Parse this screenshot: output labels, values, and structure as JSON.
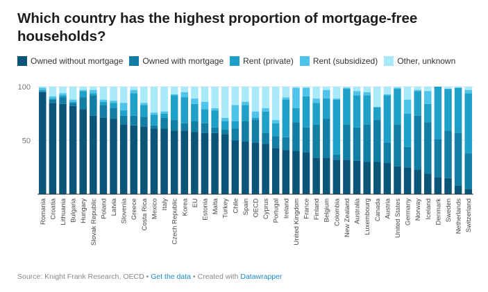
{
  "chart_data": {
    "type": "bar",
    "stacked": true,
    "title": "Which country has the highest proportion of mortgage-free households?",
    "ylim": [
      0,
      100
    ],
    "yticks": [
      50,
      100
    ],
    "grid": true,
    "legend_position": "top",
    "categories": [
      "Romania",
      "Croatia",
      "Lithuania",
      "Bulgaria",
      "Hungary",
      "Slovak Republic",
      "Poland",
      "Latvia",
      "Slovenia",
      "Greece",
      "Costa Rica",
      "Mexico",
      "Italy",
      "Czech Republic",
      "Korea",
      "EU",
      "Estonia",
      "Malta",
      "Turkey",
      "Chile",
      "Spain",
      "OECD",
      "Cyprus",
      "Portugal",
      "Ireland",
      "United Kingdom",
      "France",
      "Finland",
      "Belgium",
      "Colombia",
      "New Zealand",
      "Australia",
      "Luxembourg",
      "Canada",
      "Austria",
      "United States",
      "Germany",
      "Norway",
      "Iceland",
      "Denmark",
      "Sweden",
      "Netherlands",
      "Switzerland"
    ],
    "series": [
      {
        "name": "Owned without mortgage",
        "color": "#0b5578",
        "values": [
          95,
          85,
          84,
          82,
          79,
          73,
          71,
          70,
          65,
          64,
          63,
          61,
          61,
          59,
          59,
          58,
          57,
          57,
          56,
          50,
          49,
          48,
          47,
          43,
          41,
          40,
          39,
          34,
          34,
          32,
          32,
          31,
          30,
          30,
          29,
          26,
          25,
          23,
          19,
          16,
          15,
          8,
          5
        ]
      },
      {
        "name": "Owned with mortgage",
        "color": "#127ea3",
        "values": [
          1,
          3,
          6,
          3,
          11,
          19,
          12,
          10,
          8,
          9,
          9,
          3,
          10,
          10,
          7,
          10,
          9,
          5,
          4,
          11,
          19,
          21,
          10,
          11,
          12,
          27,
          23,
          31,
          36,
          5,
          33,
          31,
          35,
          39,
          19,
          39,
          19,
          50,
          48,
          35,
          44,
          49,
          33
        ]
      },
      {
        "name": "Rent (private)",
        "color": "#1ea0c8",
        "values": [
          1,
          1,
          2,
          1,
          6,
          2,
          3,
          5,
          5,
          21,
          11,
          10,
          4,
          23,
          24,
          16,
          13,
          16,
          8,
          7,
          15,
          2,
          20,
          12,
          35,
          13,
          29,
          20,
          19,
          51,
          33,
          30,
          27,
          12,
          44,
          33,
          31,
          23,
          17,
          49,
          39,
          42,
          56
        ]
      },
      {
        "name": "Rent (subsidized)",
        "color": "#4fc4ea",
        "values": [
          2,
          2,
          2,
          2,
          1,
          3,
          2,
          2,
          7,
          3,
          2,
          2,
          2,
          1,
          5,
          5,
          7,
          2,
          3,
          15,
          3,
          6,
          3,
          3,
          2,
          19,
          8,
          4,
          8,
          1,
          1,
          4,
          3,
          0,
          1,
          1,
          13,
          1,
          12,
          0,
          0,
          0,
          3
        ]
      },
      {
        "name": "Other, unknown",
        "color": "#a9eaf8",
        "values": [
          1,
          9,
          6,
          12,
          3,
          3,
          12,
          13,
          15,
          3,
          15,
          24,
          23,
          7,
          5,
          11,
          14,
          20,
          29,
          17,
          14,
          23,
          20,
          31,
          10,
          1,
          1,
          11,
          3,
          11,
          1,
          4,
          5,
          19,
          7,
          1,
          12,
          3,
          4,
          0,
          2,
          1,
          3
        ]
      }
    ]
  },
  "footer": {
    "source": "Source: Knight Frank Research, OECD",
    "sep1": " • ",
    "get_data": "Get the data",
    "sep2": " • Created with ",
    "datawrapper": "Datawrapper"
  }
}
